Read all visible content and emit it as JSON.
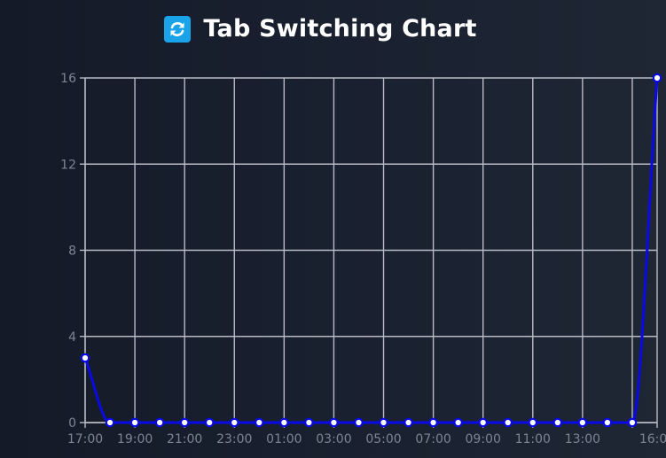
{
  "header": {
    "title": "Tab Switching Chart",
    "icon": "refresh-icon",
    "icon_color": "#1aa3e8"
  },
  "chart_data": {
    "type": "line",
    "title": "Tab Switching Chart",
    "xlabel": "",
    "ylabel": "",
    "x": [
      "17:00",
      "18:00",
      "19:00",
      "20:00",
      "21:00",
      "22:00",
      "23:00",
      "00:00",
      "01:00",
      "02:00",
      "03:00",
      "04:00",
      "05:00",
      "06:00",
      "07:00",
      "08:00",
      "09:00",
      "10:00",
      "11:00",
      "12:00",
      "13:00",
      "14:00",
      "15:00",
      "16:00"
    ],
    "x_tick_labels": [
      "17:00",
      "19:00",
      "21:00",
      "23:00",
      "01:00",
      "03:00",
      "05:00",
      "07:00",
      "09:00",
      "11:00",
      "13:00",
      "16:00"
    ],
    "x_tick_label_positions": [
      "17:00",
      "19:00",
      "21:00",
      "23:00",
      "01:00",
      "03:00",
      "05:00",
      "07:00",
      "09:00",
      "11:00",
      "13:00",
      "16:00"
    ],
    "series": [
      {
        "values": [
          3,
          0,
          0,
          0,
          0,
          0,
          0,
          0,
          0,
          0,
          0,
          0,
          0,
          0,
          0,
          0,
          0,
          0,
          0,
          0,
          0,
          0,
          0,
          16
        ],
        "color": "#0a0ae6"
      }
    ],
    "y_ticks": [
      0,
      4,
      8,
      12,
      16
    ],
    "ylim": [
      0,
      16
    ],
    "grid": true,
    "legend": "none"
  }
}
